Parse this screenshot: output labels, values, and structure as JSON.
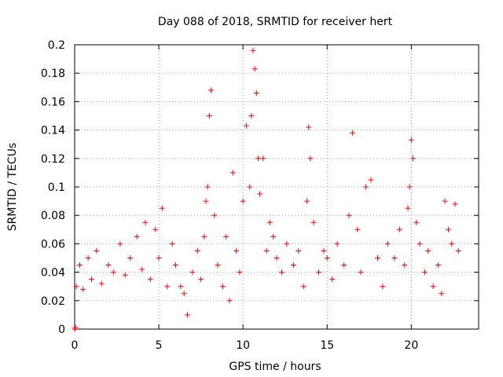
{
  "colors": {
    "points": "#ff0000",
    "axes": "#000000",
    "grid": "#a0a0a0"
  },
  "chart_data": {
    "type": "scatter",
    "title": "Day 088 of 2018, SRMTID for receiver hert",
    "xlabel": "GPS time / hours",
    "ylabel": "SRMTID / TECUs",
    "xlim": [
      0,
      24
    ],
    "ylim": [
      0,
      0.2
    ],
    "xticks": [
      0,
      5,
      10,
      15,
      20
    ],
    "xtick_labels": [
      "0",
      "5",
      "10",
      "15",
      "20"
    ],
    "yticks": [
      0,
      0.02,
      0.04,
      0.06,
      0.08,
      0.1,
      0.12,
      0.14,
      0.16,
      0.18,
      0.2
    ],
    "ytick_labels": [
      "0",
      "0.02",
      "0.04",
      "0.06",
      "0.08",
      "0.1",
      "0.12",
      "0.14",
      "0.16",
      "0.18",
      "0.2"
    ],
    "grid": true,
    "marker": "+",
    "series": [
      {
        "name": "SRMTID",
        "x": [
          0.0,
          0.05,
          0.1,
          0.3,
          0.5,
          0.8,
          1.0,
          1.3,
          1.6,
          2.0,
          2.3,
          2.7,
          3.0,
          3.3,
          3.7,
          4.0,
          4.2,
          4.5,
          4.8,
          5.0,
          5.2,
          5.5,
          5.8,
          6.0,
          6.3,
          6.5,
          6.7,
          7.0,
          7.3,
          7.5,
          7.7,
          7.8,
          7.9,
          8.0,
          8.1,
          8.3,
          8.5,
          8.8,
          9.0,
          9.2,
          9.4,
          9.6,
          9.8,
          10.0,
          10.2,
          10.4,
          10.5,
          10.6,
          10.7,
          10.8,
          10.9,
          11.0,
          11.2,
          11.4,
          11.6,
          11.8,
          12.0,
          12.3,
          12.6,
          13.0,
          13.3,
          13.6,
          13.8,
          13.9,
          14.0,
          14.2,
          14.5,
          14.8,
          15.0,
          15.3,
          15.6,
          16.0,
          16.3,
          16.5,
          16.8,
          17.0,
          17.3,
          17.6,
          18.0,
          18.3,
          18.6,
          19.0,
          19.3,
          19.6,
          19.8,
          19.9,
          20.0,
          20.1,
          20.3,
          20.5,
          20.8,
          21.0,
          21.3,
          21.6,
          21.8,
          22.0,
          22.2,
          22.4,
          22.6,
          22.8
        ],
        "y": [
          0.0,
          0.001,
          0.03,
          0.045,
          0.028,
          0.05,
          0.035,
          0.055,
          0.032,
          0.045,
          0.04,
          0.06,
          0.038,
          0.05,
          0.065,
          0.042,
          0.075,
          0.035,
          0.07,
          0.05,
          0.085,
          0.03,
          0.06,
          0.045,
          0.03,
          0.025,
          0.01,
          0.04,
          0.055,
          0.035,
          0.065,
          0.09,
          0.1,
          0.15,
          0.168,
          0.08,
          0.045,
          0.03,
          0.065,
          0.02,
          0.11,
          0.055,
          0.04,
          0.09,
          0.143,
          0.1,
          0.15,
          0.196,
          0.183,
          0.166,
          0.12,
          0.095,
          0.12,
          0.055,
          0.075,
          0.065,
          0.05,
          0.04,
          0.06,
          0.045,
          0.055,
          0.03,
          0.09,
          0.142,
          0.12,
          0.075,
          0.04,
          0.055,
          0.05,
          0.035,
          0.06,
          0.045,
          0.08,
          0.138,
          0.07,
          0.04,
          0.1,
          0.105,
          0.05,
          0.03,
          0.06,
          0.05,
          0.07,
          0.045,
          0.085,
          0.1,
          0.133,
          0.12,
          0.075,
          0.06,
          0.04,
          0.055,
          0.03,
          0.045,
          0.025,
          0.09,
          0.07,
          0.06,
          0.088,
          0.055
        ]
      }
    ]
  }
}
